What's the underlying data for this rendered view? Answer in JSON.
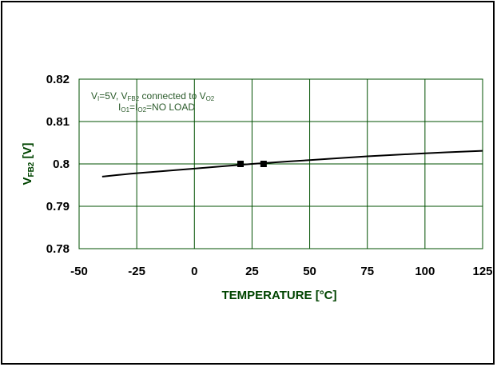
{
  "colors": {
    "grid": "#005000",
    "axis_title": "#004400",
    "line": "#000000",
    "marker": "#000000",
    "annotation": "#2a5a2a"
  },
  "chart_data": {
    "type": "line",
    "title": "",
    "xlabel": "TEMPERATURE [°C]",
    "ylabel_main": "V",
    "ylabel_sub": "FB2",
    "ylabel_unit": " [V]",
    "xlim": [
      -50,
      125
    ],
    "ylim": [
      0.78,
      0.82
    ],
    "xticks": [
      -50,
      -25,
      0,
      25,
      50,
      75,
      100,
      125
    ],
    "xtick_labels": [
      "-50",
      "-25",
      "0",
      "25",
      "50",
      "75",
      "100",
      "125"
    ],
    "yticks": [
      0.78,
      0.79,
      0.8,
      0.81,
      0.82
    ],
    "ytick_labels": [
      "0.78",
      "0.79",
      "0.8",
      "0.81",
      "0.82"
    ],
    "grid": true,
    "series": [
      {
        "x": [
          -40,
          -25,
          0,
          25,
          50,
          75,
          100,
          125
        ],
        "y": [
          0.797,
          0.7978,
          0.7989,
          0.8,
          0.8009,
          0.8018,
          0.8025,
          0.8031
        ]
      }
    ],
    "markers": {
      "x": [
        20,
        30
      ],
      "y": [
        0.8,
        0.8
      ]
    },
    "annotation": {
      "line1": {
        "v": "V",
        "v_sub": "I",
        "mid": "=5V, V",
        "fb_sub": "FB2",
        "conn": " connected to V",
        "o2_sub": "O2"
      },
      "line2": {
        "i1": "I",
        "i1_sub": "O1",
        "eq": "=I",
        "i2_sub": "O2",
        "rest": "=NO LOAD"
      }
    }
  }
}
